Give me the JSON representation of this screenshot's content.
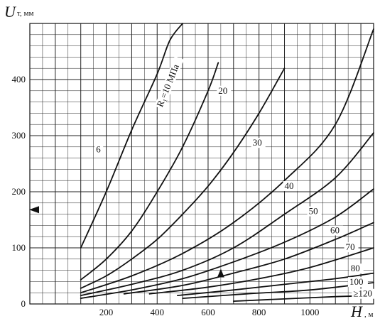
{
  "chart_data": {
    "type": "line",
    "title": "",
    "xlabel": "H",
    "xlabel_unit": ", м",
    "ylabel": "U",
    "ylabel_unit": "т, мм",
    "xlim": [
      -100,
      1250
    ],
    "ylim": [
      0,
      500
    ],
    "xticks": [
      200,
      400,
      600,
      800,
      1000
    ],
    "yticks": [
      0,
      100,
      200,
      300,
      400
    ],
    "grid": true,
    "series": [
      {
        "name": "6",
        "label_text": "6",
        "x": [
          100,
          200,
          300,
          400,
          450,
          500
        ],
        "y": [
          100,
          200,
          310,
          410,
          470,
          500
        ]
      },
      {
        "name": "10",
        "label_text": "R₁=10 МПа",
        "x": [
          100,
          200,
          300,
          400,
          500,
          600,
          640
        ],
        "y": [
          43,
          80,
          130,
          200,
          280,
          380,
          430
        ]
      },
      {
        "name": "20",
        "label_text": "20",
        "x": [
          100,
          200,
          300,
          400,
          500,
          600,
          700,
          800,
          900
        ],
        "y": [
          28,
          50,
          80,
          115,
          160,
          210,
          270,
          340,
          420
        ]
      },
      {
        "name": "30",
        "label_text": "30",
        "x": [
          100,
          300,
          500,
          700,
          900,
          1100,
          1250
        ],
        "y": [
          20,
          50,
          90,
          145,
          220,
          320,
          490
        ]
      },
      {
        "name": "40",
        "label_text": "40",
        "x": [
          100,
          300,
          500,
          700,
          900,
          1100,
          1250
        ],
        "y": [
          15,
          35,
          60,
          100,
          160,
          225,
          305
        ]
      },
      {
        "name": "50",
        "label_text": "50",
        "x": [
          100,
          300,
          500,
          700,
          900,
          1100,
          1250
        ],
        "y": [
          10,
          25,
          45,
          75,
          110,
          155,
          205
        ]
      },
      {
        "name": "60",
        "label_text": "60",
        "x": [
          270,
          500,
          700,
          900,
          1100,
          1250
        ],
        "y": [
          18,
          33,
          55,
          80,
          115,
          145
        ]
      },
      {
        "name": "70",
        "label_text": "70",
        "x": [
          370,
          600,
          800,
          1000,
          1250
        ],
        "y": [
          18,
          30,
          45,
          65,
          100
        ]
      },
      {
        "name": "80",
        "label_text": "80",
        "x": [
          480,
          700,
          900,
          1100,
          1250
        ],
        "y": [
          15,
          25,
          35,
          45,
          55
        ]
      },
      {
        "name": "100",
        "label_text": "100",
        "x": [
          500,
          750,
          1000,
          1250
        ],
        "y": [
          10,
          18,
          25,
          38
        ]
      },
      {
        "name": "≥120",
        "label_text": "≥120",
        "x": [
          700,
          900,
          1100,
          1250
        ],
        "y": [
          5,
          9,
          13,
          15
        ]
      }
    ],
    "annotations": [
      {
        "type": "arrow-left",
        "x": -100,
        "y": 168
      },
      {
        "type": "arrow-up",
        "x": 650,
        "y": 55
      }
    ]
  }
}
